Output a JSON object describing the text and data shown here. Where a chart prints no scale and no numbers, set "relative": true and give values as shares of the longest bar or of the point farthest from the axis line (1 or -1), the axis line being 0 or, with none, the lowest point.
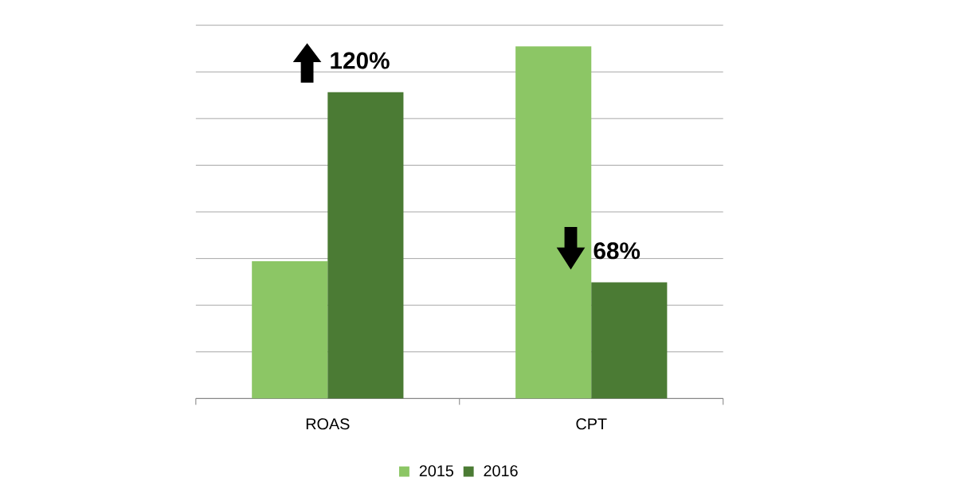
{
  "chart_data": {
    "type": "bar",
    "relative": true,
    "grid": true,
    "legend": "bottom",
    "categories": [
      "ROAS",
      "CPT"
    ],
    "series": [
      {
        "name": "2015",
        "color": "#8cc665",
        "values": [
          0.39,
          1
        ]
      },
      {
        "name": "2016",
        "color": "#4b7b34",
        "values": [
          0.87,
          0.33
        ]
      }
    ],
    "annotations": [
      "120%",
      "68%"
    ]
  }
}
